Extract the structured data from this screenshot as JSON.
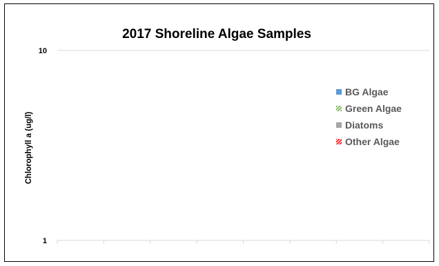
{
  "chart_data": {
    "type": "bar",
    "title": "2017 Shoreline Algae Samples",
    "ylabel": "Chlorophyll a (ug/l)",
    "yscale": "log",
    "ylim": [
      1,
      10
    ],
    "yticks": [
      {
        "value": 1,
        "label": "1"
      },
      {
        "value": 10,
        "label": "10"
      }
    ],
    "categories_count": 8,
    "series": [
      {
        "name": "BG Algae",
        "color": "#5b9bd5",
        "pattern": "solid",
        "values": []
      },
      {
        "name": "Green Algae",
        "color": "#70ad47",
        "pattern": "diagonal-stripes",
        "values": []
      },
      {
        "name": "Diatoms",
        "color": "#a5a5a5",
        "pattern": "solid",
        "values": []
      },
      {
        "name": "Other Algae",
        "color": "#ff0000",
        "pattern": "diagonal-stripes",
        "values": []
      }
    ],
    "grid": true,
    "legend": "right"
  }
}
